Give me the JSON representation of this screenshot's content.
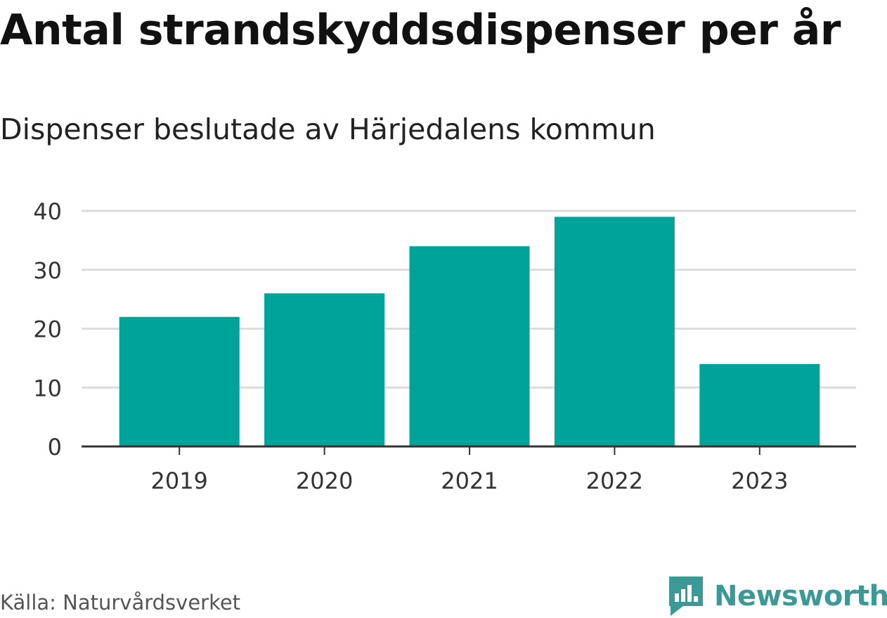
{
  "chart_data": {
    "type": "bar",
    "title": "Antal strandskyddsdispenser per år",
    "subtitle": "Dispenser beslutade av Härjedalens kommun",
    "categories": [
      "2019",
      "2020",
      "2021",
      "2022",
      "2023"
    ],
    "values": [
      22,
      26,
      34,
      39,
      14
    ],
    "yticks": [
      0,
      10,
      20,
      30,
      40
    ],
    "ylim": [
      0,
      40
    ],
    "xlabel": "",
    "ylabel": "",
    "grid": true,
    "bar_color": "#00a39a"
  },
  "footer": {
    "source": "Källa: Naturvårdsverket",
    "brand": "Newsworthy",
    "brand_color": "#3d9996"
  }
}
